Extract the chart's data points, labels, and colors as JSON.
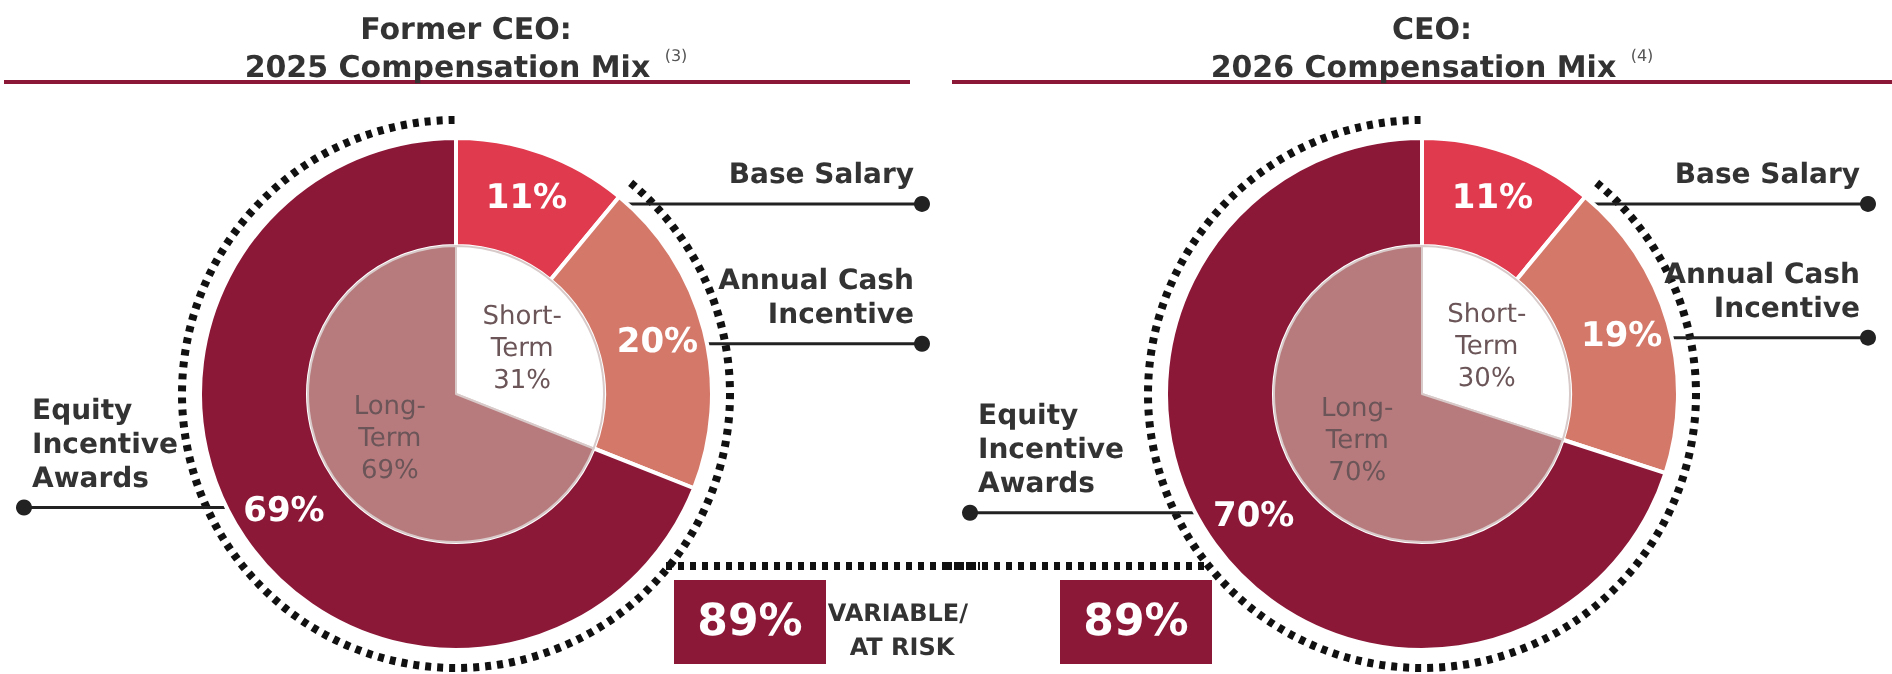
{
  "chart_data": [
    {
      "type": "donut",
      "title": "Former CEO:\n2025 Compensation Mix $^{(3)}$",
      "categories": [
        "Base Salary",
        "Annual Cash Incentive",
        "Equity Incentive Awards"
      ],
      "values": [
        11,
        20,
        69
      ],
      "colors": [
        "#e03a4e",
        "#d4796a",
        "#8c1838"
      ],
      "value_labels": [
        "11%",
        "20%",
        "69%"
      ],
      "annotations": [
        "89%",
        "VARIABLE/ AT RISK"
      ]
    },
    {
      "type": "pie",
      "categories": [
        "Short-Term",
        "Long-Term"
      ],
      "values": [
        31,
        69
      ],
      "colors": [
        "#ffffff",
        "#b77b7e"
      ],
      "value_labels": [
        "31%",
        "69%"
      ]
    },
    {
      "type": "donut",
      "title": "CEO:\n2026 Compensation Mix $^{(4)}$",
      "categories": [
        "Base Salary",
        "Annual Cash Incentive",
        "Equity Incentive Awards"
      ],
      "values": [
        11,
        19,
        70
      ],
      "colors": [
        "#e03a4e",
        "#d4796a",
        "#8c1838"
      ],
      "value_labels": [
        "11%",
        "19%",
        "70%"
      ],
      "annotations": [
        "89%"
      ]
    },
    {
      "type": "pie",
      "categories": [
        "Short-Term",
        "Long-Term"
      ],
      "values": [
        30,
        70
      ],
      "colors": [
        "#ffffff",
        "#b77b7e"
      ],
      "value_labels": [
        "30%",
        "70%"
      ]
    }
  ]
}
